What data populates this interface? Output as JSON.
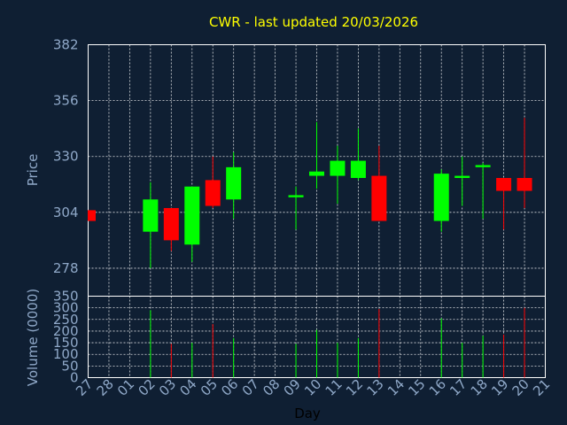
{
  "chart_data": {
    "type": "candlestick",
    "title": "CWR - last updated 20/03/2026",
    "xlabel": "Day",
    "price_panel": {
      "ylabel": "Price",
      "ylim": [
        265,
        382
      ],
      "yticks": [
        278,
        304,
        330,
        356,
        382
      ]
    },
    "volume_panel": {
      "ylabel": "Volume (0000)",
      "ylim": [
        0,
        350
      ],
      "yticks": [
        0,
        50,
        100,
        150,
        200,
        250,
        300,
        350
      ]
    },
    "x_ticks": [
      "27",
      "28",
      "01",
      "02",
      "03",
      "04",
      "05",
      "06",
      "07",
      "08",
      "09",
      "10",
      "11",
      "12",
      "13",
      "14",
      "15",
      "16",
      "17",
      "18",
      "19",
      "20",
      "21"
    ],
    "colors": {
      "up": "#00ff00",
      "down": "#ff0000",
      "grid": "#ffffff",
      "background": "#0f1f33",
      "title": "#ffff00",
      "axis": "#8fa8c8"
    },
    "candles": [
      {
        "day": "27",
        "open": 305,
        "high": 305,
        "low": 300,
        "close": 300,
        "volume": 0
      },
      {
        "day": "02",
        "open": 295,
        "high": 318,
        "low": 278,
        "close": 310,
        "volume": 290
      },
      {
        "day": "03",
        "open": 306,
        "high": 306,
        "low": 286,
        "close": 291,
        "volume": 145
      },
      {
        "day": "04",
        "open": 289,
        "high": 316,
        "low": 281,
        "close": 316,
        "volume": 150
      },
      {
        "day": "05",
        "open": 319,
        "high": 330,
        "low": 306,
        "close": 307,
        "volume": 230
      },
      {
        "day": "06",
        "open": 310,
        "high": 332,
        "low": 301,
        "close": 325,
        "volume": 170
      },
      {
        "day": "09",
        "open": 311,
        "high": 316,
        "low": 296,
        "close": 312,
        "volume": 145
      },
      {
        "day": "10",
        "open": 321,
        "high": 346,
        "low": 315,
        "close": 323,
        "volume": 205
      },
      {
        "day": "11",
        "open": 321,
        "high": 335,
        "low": 308,
        "close": 328,
        "volume": 150
      },
      {
        "day": "12",
        "open": 320,
        "high": 343,
        "low": 319,
        "close": 328,
        "volume": 170
      },
      {
        "day": "13",
        "open": 321,
        "high": 335,
        "low": 300,
        "close": 300,
        "volume": 295
      },
      {
        "day": "16",
        "open": 300,
        "high": 324,
        "low": 295,
        "close": 322,
        "volume": 255
      },
      {
        "day": "17",
        "open": 320,
        "high": 330,
        "low": 307,
        "close": 321,
        "volume": 150
      },
      {
        "day": "18",
        "open": 325,
        "high": 327,
        "low": 301,
        "close": 326,
        "volume": 180
      },
      {
        "day": "19",
        "open": 320,
        "high": 320,
        "low": 296,
        "close": 314,
        "volume": 185
      },
      {
        "day": "20",
        "open": 320,
        "high": 348,
        "low": 306,
        "close": 314,
        "volume": 300
      }
    ]
  }
}
